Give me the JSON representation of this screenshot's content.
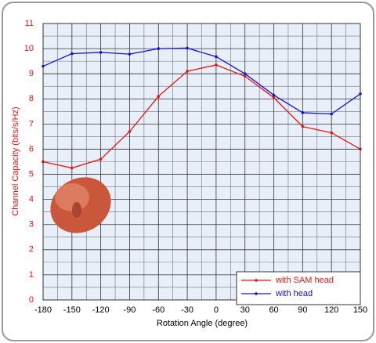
{
  "chart_data": {
    "type": "line",
    "x_label": "Rotation Angle (degree)",
    "y_label": "Channel Capacity (bits/s/Hz)",
    "x": [
      -180,
      -150,
      -120,
      -90,
      -60,
      -30,
      0,
      30,
      60,
      90,
      120,
      150
    ],
    "series": [
      {
        "name": "with SAM head",
        "color": "#ee1111",
        "values": [
          5.5,
          5.25,
          5.6,
          6.7,
          8.1,
          9.1,
          9.35,
          8.9,
          8.05,
          6.9,
          6.65,
          6.0
        ]
      },
      {
        "name": "with head",
        "color": "#1111dd",
        "values": [
          9.3,
          9.8,
          9.85,
          9.78,
          10.0,
          10.02,
          9.68,
          9.0,
          8.15,
          7.45,
          7.4,
          8.2
        ]
      }
    ],
    "xlim": [
      -180,
      150
    ],
    "xticks": [
      -180,
      -150,
      -120,
      -90,
      -60,
      -30,
      0,
      30,
      60,
      90,
      120,
      150
    ],
    "ylim": [
      0,
      11
    ],
    "yticks": [
      0,
      1,
      2,
      3,
      4,
      5,
      6,
      7,
      8,
      9,
      10,
      11
    ],
    "grid": true,
    "legend": "lower right"
  }
}
